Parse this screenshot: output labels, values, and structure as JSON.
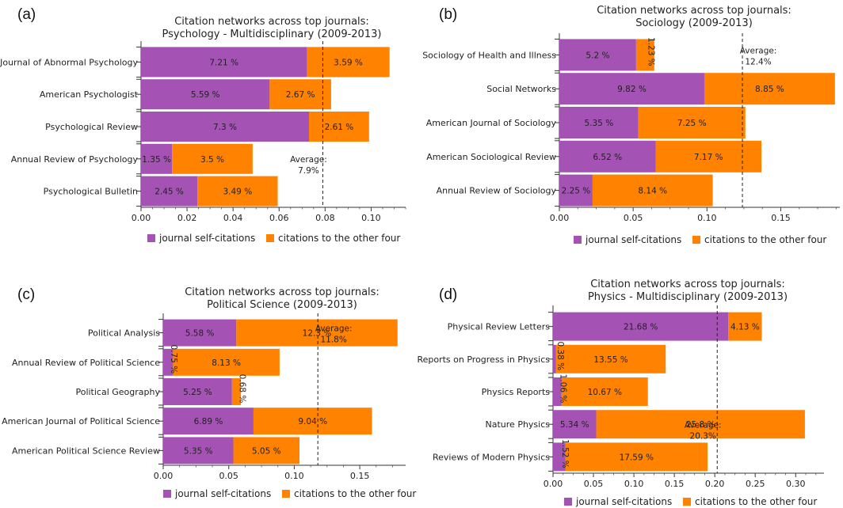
{
  "colors": {
    "self": "#a453b4",
    "other": "#ff8200"
  },
  "legend": {
    "self_label": "journal self-citations",
    "other_label": "citations to the other four"
  },
  "chart_data": [
    {
      "type": "bar",
      "panel_label": "(a)",
      "title": "Citation networks across top journals:",
      "subtitle": "Psychology - Multidisciplinary (2009-2013)",
      "orientation": "horizontal",
      "stacked": true,
      "categories": [
        "Journal of Abnormal Psychology",
        "American Psychologist",
        "Psychological Review",
        "Annual Review of Psychology",
        "Psychological Bulletin"
      ],
      "series": [
        {
          "name": "journal self-citations",
          "values": [
            0.0721,
            0.0559,
            0.073,
            0.0135,
            0.0245
          ],
          "labels": [
            "7.21 %",
            "5.59 %",
            "7.3 %",
            "1.35 %",
            "2.45 %"
          ]
        },
        {
          "name": "citations to the other four",
          "values": [
            0.0359,
            0.0267,
            0.0261,
            0.035,
            0.0349
          ],
          "labels": [
            "3.59 %",
            "2.67 %",
            "2.61 %",
            "3.5 %",
            "3.49 %"
          ]
        }
      ],
      "xlim": [
        0,
        0.115
      ],
      "xticks": [
        0,
        0.02,
        0.04,
        0.06,
        0.08,
        0.1
      ],
      "xtick_labels": [
        "0.00",
        "0.02",
        "0.04",
        "0.06",
        "0.08",
        "0.10"
      ],
      "average": {
        "value": 0.079,
        "label_line1": "Average:",
        "label_line2": "7.9%",
        "label_side": "left"
      },
      "legend_position": "bottom"
    },
    {
      "type": "bar",
      "panel_label": "(b)",
      "title": "Citation networks across top journals:",
      "subtitle": "Sociology (2009-2013)",
      "orientation": "horizontal",
      "stacked": true,
      "categories": [
        "Sociology of Health and Illness",
        "Social Networks",
        "American Journal of Sociology",
        "American Sociological Review",
        "Annual Review of Sociology"
      ],
      "series": [
        {
          "name": "journal self-citations",
          "values": [
            0.052,
            0.0982,
            0.0535,
            0.0652,
            0.0225
          ],
          "labels": [
            "5.2 %",
            "9.82 %",
            "5.35 %",
            "6.52 %",
            "2.25 %"
          ]
        },
        {
          "name": "citations to the other four",
          "values": [
            0.0123,
            0.0885,
            0.0725,
            0.0717,
            0.0814
          ],
          "labels": [
            "1.23 %",
            "8.85 %",
            "7.25 %",
            "7.17 %",
            "8.14 %"
          ]
        }
      ],
      "xlim": [
        0,
        0.19
      ],
      "xticks": [
        0,
        0.05,
        0.1,
        0.15
      ],
      "xtick_labels": [
        "0.00",
        "0.05",
        "0.10",
        "0.15"
      ],
      "average": {
        "value": 0.124,
        "label_line1": "Average:",
        "label_line2": "12.4%",
        "label_side": "right"
      },
      "legend_position": "bottom"
    },
    {
      "type": "bar",
      "panel_label": "(c)",
      "title": "Citation networks across top journals:",
      "subtitle": "Political Science (2009-2013)",
      "orientation": "horizontal",
      "stacked": true,
      "categories": [
        "Political Analysis",
        "Annual Review of Political Science",
        "Political Geography",
        "American Journal of Political Science",
        "American Political Science Review"
      ],
      "series": [
        {
          "name": "journal self-citations",
          "values": [
            0.0558,
            0.0075,
            0.0525,
            0.0689,
            0.0535
          ],
          "labels": [
            "5.58 %",
            "0.75 %",
            "5.25 %",
            "6.89 %",
            "5.35 %"
          ]
        },
        {
          "name": "citations to the other four",
          "values": [
            0.123,
            0.0813,
            0.0068,
            0.0904,
            0.0505
          ],
          "labels": [
            "12.3 %",
            "8.13 %",
            "0.68 %",
            "9.04 %",
            "5.05 %"
          ]
        }
      ],
      "xlim": [
        0,
        0.185
      ],
      "xticks": [
        0,
        0.05,
        0.1,
        0.15
      ],
      "xtick_labels": [
        "0.00",
        "0.05",
        "0.10",
        "0.15"
      ],
      "average": {
        "value": 0.118,
        "label_line1": "Average:",
        "label_line2": "11.8%",
        "label_side": "right"
      },
      "legend_position": "bottom"
    },
    {
      "type": "bar",
      "panel_label": "(d)",
      "title": "Citation networks across top journals:",
      "subtitle": "Physics - Multidisciplinary (2009-2013)",
      "orientation": "horizontal",
      "stacked": true,
      "categories": [
        "Physical Review Letters",
        "Reports on Progress in Physics",
        "Physics Reports",
        "Nature Physics",
        "Reviews of Modern Physics"
      ],
      "series": [
        {
          "name": "journal self-citations",
          "values": [
            0.2168,
            0.0038,
            0.0106,
            0.0534,
            0.0152
          ],
          "labels": [
            "21.68 %",
            "0.38 %",
            "1.06 %",
            "5.34 %",
            "1.52 %"
          ]
        },
        {
          "name": "citations to the other four",
          "values": [
            0.0413,
            0.1355,
            0.1067,
            0.258,
            0.1759
          ],
          "labels": [
            "4.13 %",
            "13.55 %",
            "10.67 %",
            "25.8 %",
            "17.59 %"
          ]
        }
      ],
      "xlim": [
        0,
        0.335
      ],
      "xticks": [
        0,
        0.05,
        0.1,
        0.15,
        0.2,
        0.25,
        0.3
      ],
      "xtick_labels": [
        "0.00",
        "0.05",
        "0.10",
        "0.15",
        "0.20",
        "0.25",
        "0.30"
      ],
      "average": {
        "value": 0.203,
        "label_line1": "Average:",
        "label_line2": "20.3%",
        "label_side": "left"
      },
      "legend_position": "bottom"
    }
  ]
}
